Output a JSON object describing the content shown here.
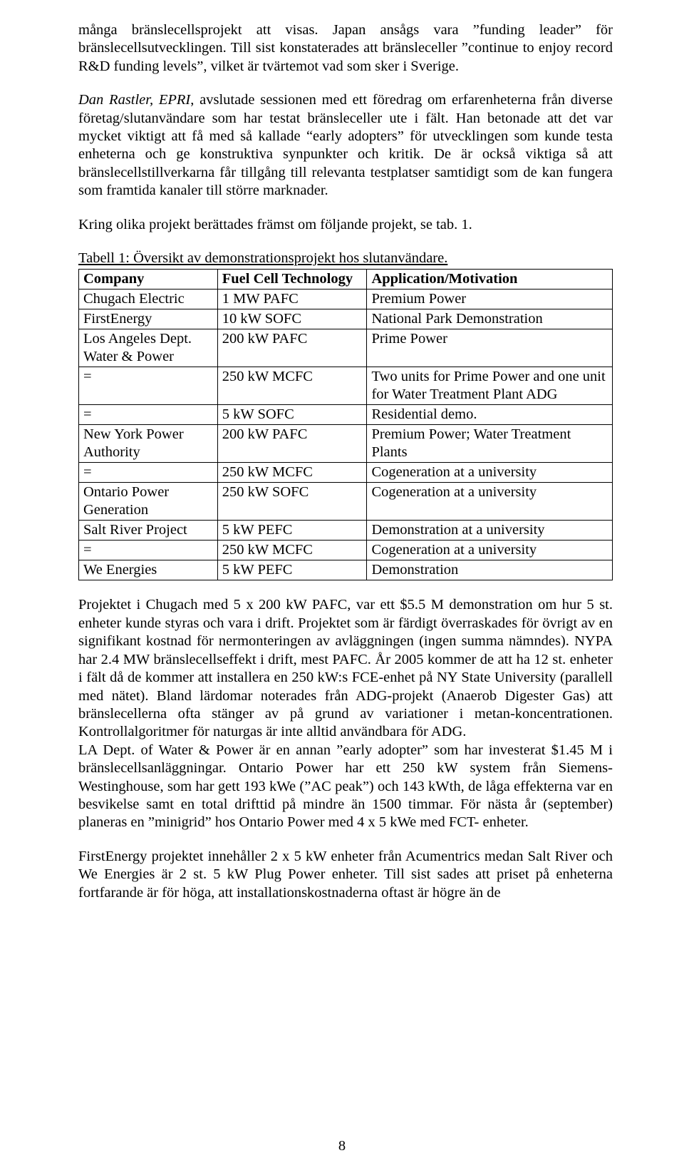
{
  "paragraphs": {
    "p1": "många bränslecellsprojekt att visas. Japan ansågs vara ”funding leader” för bränslecellsutvecklingen. Till sist konstaterades att bränsleceller ”continue to enjoy record R&D funding levels”, vilket är tvärtemot vad som sker i Sverige.",
    "p2_prefix_italic": "Dan Rastler, EPRI",
    "p2_rest": ", avslutade sessionen med ett föredrag om erfarenheterna från diverse företag/slutanvändare som har testat bränsleceller ute i fält. Han betonade att det var mycket viktigt att få med så kallade “early adopters” för utvecklingen som kunde testa enheterna och ge konstruktiva synpunkter och kritik. De är också viktiga så att bränslecellstillverkarna får tillgång till relevanta testplatser samtidigt som de kan fungera som framtida kanaler till större marknader.",
    "p3": "Kring olika projekt berättades främst om följande projekt, se tab. 1.",
    "p4": "Projektet i Chugach med 5 x 200 kW PAFC, var ett $5.5 M demonstration om hur 5 st. enheter kunde styras och vara i drift. Projektet som är färdigt överraskades för övrigt av en signifikant kostnad för nermonteringen av avläggningen (ingen summa nämndes). NYPA har 2.4 MW bränslecellseffekt i drift, mest PAFC. År 2005 kommer de att ha 12 st. enheter i fält då de kommer att installera en 250 kW:s FCE-enhet på NY State University (parallell med nätet). Bland lärdomar noterades från ADG-projekt (Anaerob Digester Gas) att bränslecellerna ofta stänger av på grund av variationer i metan-koncentrationen. Kontrollalgoritmer för naturgas är inte alltid användbara för ADG.",
    "p5": "LA Dept. of Water & Power är en annan ”early adopter” som har investerat $1.45 M i bränslecellsanläggningar. Ontario Power har ett 250 kW system från Siemens-Westinghouse, som har gett 193 kWe (”AC peak”) och 143 kWth, de låga effekterna var en besvikelse samt en total drifttid på mindre än 1500 timmar. För nästa år (september) planeras en ”minigrid” hos Ontario Power med 4 x 5 kWe med FCT- enheter.",
    "p6": "FirstEnergy projektet innehåller 2 x 5 kW enheter från Acumentrics medan Salt River och We Energies är 2 st. 5 kW Plug Power enheter. Till sist sades att priset på enheterna fortfarande är för höga, att installationskostnaderna oftast är högre än de"
  },
  "table": {
    "caption": "Tabell 1: Översikt av demonstrationsprojekt hos slutanvändare.",
    "columns": [
      "Company",
      "Fuel Cell Technology",
      "Application/Motivation"
    ],
    "col_widths": [
      "26%",
      "28%",
      "46%"
    ],
    "rows": [
      [
        "Chugach Electric",
        "1 MW PAFC",
        "Premium Power"
      ],
      [
        "FirstEnergy",
        "10 kW SOFC",
        "National Park Demonstration"
      ],
      [
        "Los Angeles Dept. Water & Power",
        "200 kW PAFC",
        "Prime Power"
      ],
      [
        "=",
        "250 kW MCFC",
        "Two units for Prime Power and one unit for Water Treatment Plant ADG"
      ],
      [
        "=",
        "5 kW SOFC",
        "Residential demo."
      ],
      [
        "New York Power Authority",
        "200 kW PAFC",
        "Premium Power; Water Treatment Plants"
      ],
      [
        "=",
        "250 kW MCFC",
        "Cogeneration at a university"
      ],
      [
        "Ontario Power Generation",
        "250 kW SOFC",
        "Cogeneration at a university"
      ],
      [
        "Salt River Project",
        "5 kW PEFC",
        "Demonstration at a university"
      ],
      [
        "=",
        "250 kW MCFC",
        "Cogeneration at a university"
      ],
      [
        "We Energies",
        "5 kW PEFC",
        "Demonstration"
      ]
    ]
  },
  "page_number": "8"
}
